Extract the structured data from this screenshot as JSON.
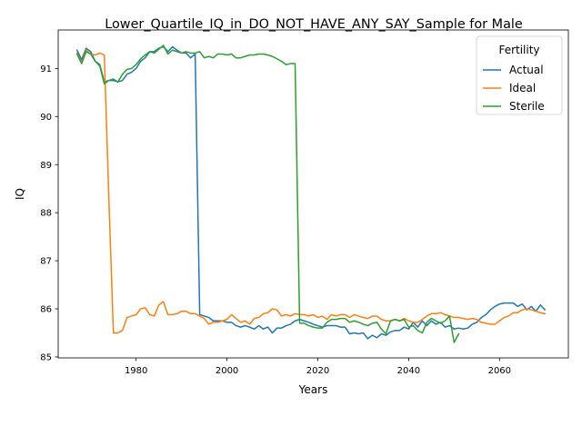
{
  "chart_data": {
    "type": "line",
    "title": "Lower_Quartile_IQ_in_DO_NOT_HAVE_ANY_SAY_Sample for Male",
    "xlabel": "Years",
    "ylabel": "IQ",
    "xlim": [
      1962.85,
      2075.15
    ],
    "ylim": [
      84.98,
      91.8
    ],
    "xticks": [
      1980,
      2000,
      2020,
      2040,
      2060
    ],
    "yticks": [
      85,
      86,
      87,
      88,
      89,
      90,
      91
    ],
    "grid": false,
    "legend": {
      "title": "Fertility",
      "placement": "top-right"
    },
    "series": [
      {
        "name": "Actual",
        "color": "#1f77b4",
        "points": [
          [
            1967,
            91.38
          ],
          [
            1968,
            91.18
          ],
          [
            1969,
            91.42
          ],
          [
            1970,
            91.35
          ],
          [
            1971,
            91.15
          ],
          [
            1972,
            91.08
          ],
          [
            1973,
            90.72
          ],
          [
            1974,
            90.75
          ],
          [
            1975,
            90.75
          ],
          [
            1976,
            90.72
          ],
          [
            1977,
            90.75
          ],
          [
            1978,
            90.88
          ],
          [
            1979,
            90.92
          ],
          [
            1980,
            91.0
          ],
          [
            1981,
            91.15
          ],
          [
            1982,
            91.22
          ],
          [
            1983,
            91.35
          ],
          [
            1984,
            91.35
          ],
          [
            1985,
            91.42
          ],
          [
            1986,
            91.45
          ],
          [
            1987,
            91.35
          ],
          [
            1988,
            91.45
          ],
          [
            1989,
            91.38
          ],
          [
            1990,
            91.32
          ],
          [
            1991,
            91.32
          ],
          [
            1992,
            91.22
          ],
          [
            1993,
            91.3
          ],
          [
            1994,
            85.88
          ],
          [
            1995,
            85.85
          ],
          [
            1996,
            85.82
          ],
          [
            1997,
            85.75
          ],
          [
            1998,
            85.75
          ],
          [
            1999,
            85.75
          ],
          [
            2000,
            85.72
          ],
          [
            2001,
            85.72
          ],
          [
            2002,
            85.65
          ],
          [
            2003,
            85.62
          ],
          [
            2004,
            85.65
          ],
          [
            2005,
            85.62
          ],
          [
            2006,
            85.58
          ],
          [
            2007,
            85.65
          ],
          [
            2008,
            85.58
          ],
          [
            2009,
            85.62
          ],
          [
            2010,
            85.5
          ],
          [
            2011,
            85.6
          ],
          [
            2012,
            85.6
          ],
          [
            2013,
            85.65
          ],
          [
            2014,
            85.68
          ],
          [
            2015,
            85.75
          ],
          [
            2016,
            85.78
          ],
          [
            2017,
            85.75
          ],
          [
            2018,
            85.72
          ],
          [
            2019,
            85.68
          ],
          [
            2020,
            85.65
          ],
          [
            2021,
            85.62
          ],
          [
            2022,
            85.65
          ],
          [
            2023,
            85.65
          ],
          [
            2024,
            85.65
          ],
          [
            2025,
            85.62
          ],
          [
            2026,
            85.62
          ],
          [
            2027,
            85.48
          ],
          [
            2028,
            85.5
          ],
          [
            2029,
            85.48
          ],
          [
            2030,
            85.5
          ],
          [
            2031,
            85.38
          ],
          [
            2032,
            85.45
          ],
          [
            2033,
            85.4
          ],
          [
            2034,
            85.48
          ],
          [
            2035,
            85.45
          ],
          [
            2036,
            85.52
          ],
          [
            2037,
            85.55
          ],
          [
            2038,
            85.55
          ],
          [
            2039,
            85.62
          ],
          [
            2040,
            85.58
          ],
          [
            2041,
            85.72
          ],
          [
            2042,
            85.62
          ],
          [
            2043,
            85.75
          ],
          [
            2044,
            85.65
          ],
          [
            2045,
            85.75
          ],
          [
            2046,
            85.68
          ],
          [
            2047,
            85.72
          ],
          [
            2048,
            85.62
          ],
          [
            2049,
            85.65
          ],
          [
            2050,
            85.58
          ],
          [
            2051,
            85.6
          ],
          [
            2052,
            85.58
          ],
          [
            2053,
            85.6
          ],
          [
            2054,
            85.68
          ],
          [
            2055,
            85.72
          ],
          [
            2056,
            85.82
          ],
          [
            2057,
            85.88
          ],
          [
            2058,
            85.98
          ],
          [
            2059,
            86.05
          ],
          [
            2060,
            86.1
          ],
          [
            2061,
            86.12
          ],
          [
            2062,
            86.12
          ],
          [
            2063,
            86.12
          ],
          [
            2064,
            86.05
          ],
          [
            2065,
            86.1
          ],
          [
            2066,
            85.98
          ],
          [
            2067,
            86.05
          ],
          [
            2068,
            85.95
          ],
          [
            2069,
            86.08
          ],
          [
            2070,
            85.98
          ]
        ]
      },
      {
        "name": "Ideal",
        "color": "#ff7f0e",
        "points": [
          [
            1967,
            91.32
          ],
          [
            1968,
            91.12
          ],
          [
            1969,
            91.38
          ],
          [
            1970,
            91.3
          ],
          [
            1971,
            91.28
          ],
          [
            1972,
            91.32
          ],
          [
            1973,
            91.28
          ],
          [
            1974,
            88.3
          ],
          [
            1975,
            85.5
          ],
          [
            1976,
            85.5
          ],
          [
            1977,
            85.55
          ],
          [
            1978,
            85.82
          ],
          [
            1979,
            85.85
          ],
          [
            1980,
            85.88
          ],
          [
            1981,
            86.0
          ],
          [
            1982,
            86.02
          ],
          [
            1983,
            85.88
          ],
          [
            1984,
            85.85
          ],
          [
            1985,
            86.08
          ],
          [
            1986,
            86.15
          ],
          [
            1987,
            85.88
          ],
          [
            1988,
            85.88
          ],
          [
            1989,
            85.9
          ],
          [
            1990,
            85.95
          ],
          [
            1991,
            85.95
          ],
          [
            1992,
            85.9
          ],
          [
            1993,
            85.9
          ],
          [
            1994,
            85.85
          ],
          [
            1995,
            85.8
          ],
          [
            1996,
            85.68
          ],
          [
            1997,
            85.72
          ],
          [
            1998,
            85.72
          ],
          [
            1999,
            85.75
          ],
          [
            2000,
            85.78
          ],
          [
            2001,
            85.88
          ],
          [
            2002,
            85.8
          ],
          [
            2003,
            85.72
          ],
          [
            2004,
            85.75
          ],
          [
            2005,
            85.68
          ],
          [
            2006,
            85.8
          ],
          [
            2007,
            85.82
          ],
          [
            2008,
            85.9
          ],
          [
            2009,
            85.92
          ],
          [
            2010,
            86.0
          ],
          [
            2011,
            85.98
          ],
          [
            2012,
            85.85
          ],
          [
            2013,
            85.88
          ],
          [
            2014,
            85.85
          ],
          [
            2015,
            85.9
          ],
          [
            2016,
            85.88
          ],
          [
            2017,
            85.88
          ],
          [
            2018,
            85.85
          ],
          [
            2019,
            85.88
          ],
          [
            2020,
            85.82
          ],
          [
            2021,
            85.85
          ],
          [
            2022,
            85.78
          ],
          [
            2023,
            85.88
          ],
          [
            2024,
            85.85
          ],
          [
            2025,
            85.88
          ],
          [
            2026,
            85.88
          ],
          [
            2027,
            85.82
          ],
          [
            2028,
            85.88
          ],
          [
            2029,
            85.85
          ],
          [
            2030,
            85.82
          ],
          [
            2031,
            85.8
          ],
          [
            2032,
            85.85
          ],
          [
            2033,
            85.85
          ],
          [
            2034,
            85.78
          ],
          [
            2035,
            85.75
          ],
          [
            2036,
            85.75
          ],
          [
            2037,
            85.78
          ],
          [
            2038,
            85.75
          ],
          [
            2039,
            85.8
          ],
          [
            2040,
            85.75
          ],
          [
            2041,
            85.72
          ],
          [
            2042,
            85.72
          ],
          [
            2043,
            85.78
          ],
          [
            2044,
            85.85
          ],
          [
            2045,
            85.9
          ],
          [
            2046,
            85.9
          ],
          [
            2047,
            85.92
          ],
          [
            2048,
            85.88
          ],
          [
            2049,
            85.85
          ],
          [
            2050,
            85.82
          ],
          [
            2051,
            85.82
          ],
          [
            2052,
            85.8
          ],
          [
            2053,
            85.78
          ],
          [
            2054,
            85.8
          ],
          [
            2055,
            85.78
          ],
          [
            2056,
            85.72
          ],
          [
            2057,
            85.7
          ],
          [
            2058,
            85.68
          ],
          [
            2059,
            85.68
          ],
          [
            2060,
            85.75
          ],
          [
            2061,
            85.82
          ],
          [
            2062,
            85.85
          ],
          [
            2063,
            85.92
          ],
          [
            2064,
            85.92
          ],
          [
            2065,
            85.98
          ],
          [
            2066,
            86.0
          ],
          [
            2067,
            85.98
          ],
          [
            2068,
            85.95
          ],
          [
            2069,
            85.92
          ],
          [
            2070,
            85.9
          ]
        ]
      },
      {
        "name": "Sterile",
        "color": "#2ca02c",
        "points": [
          [
            1967,
            91.3
          ],
          [
            1968,
            91.1
          ],
          [
            1969,
            91.35
          ],
          [
            1970,
            91.3
          ],
          [
            1971,
            91.15
          ],
          [
            1972,
            91.05
          ],
          [
            1973,
            90.68
          ],
          [
            1974,
            90.75
          ],
          [
            1975,
            90.78
          ],
          [
            1976,
            90.72
          ],
          [
            1977,
            90.88
          ],
          [
            1978,
            90.98
          ],
          [
            1979,
            91.0
          ],
          [
            1980,
            91.08
          ],
          [
            1981,
            91.2
          ],
          [
            1982,
            91.28
          ],
          [
            1983,
            91.35
          ],
          [
            1984,
            91.32
          ],
          [
            1985,
            91.4
          ],
          [
            1986,
            91.48
          ],
          [
            1987,
            91.3
          ],
          [
            1988,
            91.38
          ],
          [
            1989,
            91.35
          ],
          [
            1990,
            91.32
          ],
          [
            1991,
            91.35
          ],
          [
            1992,
            91.32
          ],
          [
            1993,
            91.32
          ],
          [
            1994,
            91.35
          ],
          [
            1995,
            91.22
          ],
          [
            1996,
            91.25
          ],
          [
            1997,
            91.22
          ],
          [
            1998,
            91.3
          ],
          [
            1999,
            91.3
          ],
          [
            2000,
            91.28
          ],
          [
            2001,
            91.3
          ],
          [
            2002,
            91.22
          ],
          [
            2003,
            91.22
          ],
          [
            2004,
            91.25
          ],
          [
            2005,
            91.28
          ],
          [
            2006,
            91.28
          ],
          [
            2007,
            91.3
          ],
          [
            2008,
            91.3
          ],
          [
            2009,
            91.28
          ],
          [
            2010,
            91.25
          ],
          [
            2011,
            91.2
          ],
          [
            2012,
            91.15
          ],
          [
            2013,
            91.08
          ],
          [
            2014,
            91.1
          ],
          [
            2015,
            91.1
          ],
          [
            2016,
            85.7
          ],
          [
            2017,
            85.7
          ],
          [
            2018,
            85.65
          ],
          [
            2019,
            85.62
          ],
          [
            2020,
            85.6
          ],
          [
            2021,
            85.6
          ],
          [
            2022,
            85.72
          ],
          [
            2023,
            85.78
          ],
          [
            2024,
            85.78
          ],
          [
            2025,
            85.8
          ],
          [
            2026,
            85.8
          ],
          [
            2027,
            85.72
          ],
          [
            2028,
            85.75
          ],
          [
            2029,
            85.72
          ],
          [
            2030,
            85.68
          ],
          [
            2031,
            85.65
          ],
          [
            2032,
            85.7
          ],
          [
            2033,
            85.72
          ],
          [
            2034,
            85.58
          ],
          [
            2035,
            85.48
          ],
          [
            2036,
            85.75
          ],
          [
            2037,
            85.78
          ],
          [
            2038,
            85.75
          ],
          [
            2039,
            85.78
          ],
          [
            2040,
            85.62
          ],
          [
            2041,
            85.65
          ],
          [
            2042,
            85.55
          ],
          [
            2043,
            85.5
          ],
          [
            2044,
            85.72
          ],
          [
            2045,
            85.8
          ],
          [
            2046,
            85.75
          ],
          [
            2047,
            85.7
          ],
          [
            2048,
            85.75
          ],
          [
            2049,
            85.85
          ],
          [
            2050,
            85.3
          ],
          [
            2051,
            85.48
          ]
        ]
      }
    ]
  }
}
